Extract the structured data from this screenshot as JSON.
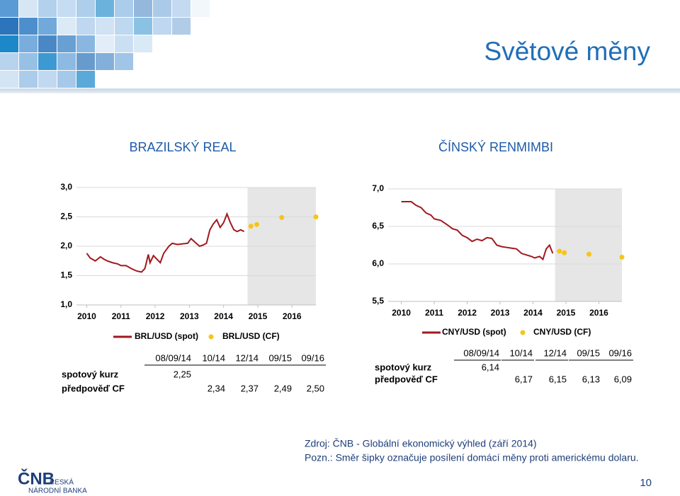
{
  "title": "Světové měny",
  "chart_data": [
    {
      "type": "line",
      "title": "BRAZILSKÝ REAL",
      "xlim": [
        2009.7,
        2016.7
      ],
      "xticks": [
        2010,
        2011,
        2012,
        2013,
        2014,
        2015,
        2016
      ],
      "ylim": [
        1.0,
        3.0
      ],
      "yticks": [
        {
          "value": 1.0,
          "label": "1,0"
        },
        {
          "value": 1.5,
          "label": "1,5"
        },
        {
          "value": 2.0,
          "label": "2,0"
        },
        {
          "value": 2.5,
          "label": "2,5"
        },
        {
          "value": 3.0,
          "label": "3,0"
        }
      ],
      "grid": true,
      "shaded_range": [
        2014.7,
        2016.7
      ],
      "series": [
        {
          "name": "BRL/USD (spot)",
          "color": "#a0191e",
          "style": "line",
          "x": [
            2010.0,
            2010.1,
            2010.25,
            2010.4,
            2010.5,
            2010.6,
            2010.75,
            2010.9,
            2011.0,
            2011.15,
            2011.3,
            2011.45,
            2011.6,
            2011.7,
            2011.8,
            2011.85,
            2011.95,
            2012.05,
            2012.15,
            2012.25,
            2012.4,
            2012.5,
            2012.65,
            2012.8,
            2012.95,
            2013.05,
            2013.2,
            2013.3,
            2013.4,
            2013.5,
            2013.6,
            2013.7,
            2013.8,
            2013.9,
            2014.0,
            2014.1,
            2014.2,
            2014.3,
            2014.4,
            2014.5,
            2014.6
          ],
          "values": [
            1.88,
            1.8,
            1.75,
            1.82,
            1.78,
            1.75,
            1.72,
            1.7,
            1.67,
            1.67,
            1.62,
            1.58,
            1.56,
            1.62,
            1.86,
            1.72,
            1.84,
            1.78,
            1.72,
            1.88,
            2.0,
            2.05,
            2.03,
            2.04,
            2.05,
            2.13,
            2.05,
            2.0,
            2.02,
            2.05,
            2.28,
            2.38,
            2.45,
            2.32,
            2.4,
            2.55,
            2.4,
            2.28,
            2.25,
            2.28,
            2.25
          ]
        },
        {
          "name": "BRL/USD (CF)",
          "color": "#f5c518",
          "style": "points",
          "x": [
            2014.8,
            2014.97,
            2015.7,
            2016.7
          ],
          "values": [
            2.34,
            2.37,
            2.49,
            2.5
          ]
        }
      ]
    },
    {
      "type": "line",
      "title": "ČÍNSKÝ RENMIMBI",
      "xlim": [
        2009.6,
        2016.7
      ],
      "xticks": [
        2010,
        2011,
        2012,
        2013,
        2014,
        2015,
        2016
      ],
      "ylim": [
        5.5,
        7.0
      ],
      "yticks": [
        {
          "value": 5.5,
          "label": "5,5"
        },
        {
          "value": 6.0,
          "label": "6,0"
        },
        {
          "value": 6.5,
          "label": "6,5"
        },
        {
          "value": 7.0,
          "label": "7,0"
        }
      ],
      "grid": true,
      "shaded_range": [
        2014.67,
        2016.7
      ],
      "series": [
        {
          "name": "CNY/USD (spot)",
          "color": "#a0191e",
          "style": "line",
          "x": [
            2010.0,
            2010.3,
            2010.45,
            2010.6,
            2010.75,
            2010.9,
            2011.0,
            2011.2,
            2011.4,
            2011.55,
            2011.7,
            2011.85,
            2012.0,
            2012.15,
            2012.3,
            2012.45,
            2012.6,
            2012.75,
            2012.9,
            2013.05,
            2013.2,
            2013.35,
            2013.5,
            2013.65,
            2013.8,
            2013.95,
            2014.05,
            2014.2,
            2014.3,
            2014.4,
            2014.5,
            2014.6
          ],
          "values": [
            6.83,
            6.83,
            6.78,
            6.75,
            6.68,
            6.65,
            6.6,
            6.58,
            6.52,
            6.47,
            6.45,
            6.38,
            6.35,
            6.3,
            6.33,
            6.31,
            6.35,
            6.34,
            6.25,
            6.23,
            6.22,
            6.21,
            6.2,
            6.14,
            6.12,
            6.1,
            6.08,
            6.1,
            6.06,
            6.2,
            6.25,
            6.14
          ]
        },
        {
          "name": "CNY/USD (CF)",
          "color": "#f5c518",
          "style": "points",
          "x": [
            2014.8,
            2014.95,
            2015.7,
            2016.7
          ],
          "values": [
            6.17,
            6.15,
            6.13,
            6.09
          ]
        }
      ]
    }
  ],
  "tables": [
    {
      "header": [
        "08/09/14",
        "10/14",
        "12/14",
        "09/15",
        "09/16"
      ],
      "spot": {
        "label": "spotový kurz",
        "value": "2,25"
      },
      "forecast": {
        "label": "předpověď CF",
        "values": [
          "2,34",
          "2,37",
          "2,49",
          "2,50"
        ]
      }
    },
    {
      "header": [
        "08/09/14",
        "10/14",
        "12/14",
        "09/15",
        "09/16"
      ],
      "spot": {
        "label": "spotový kurz",
        "value": "6,14"
      },
      "forecast": {
        "label": "předpověď CF",
        "values": [
          "6,17",
          "6,15",
          "6,13",
          "6,09"
        ]
      }
    }
  ],
  "source": "Zdroj: ČNB - Globální ekonomický výhled (září 2014)",
  "note": "Pozn.: Směr šipky označuje posílení domácí měny proti americkému dolaru.",
  "logo": {
    "mark": "ČNB",
    "line1": "ČESKÁ",
    "line2": "NÁRODNÍ BANKA"
  },
  "page_number": "10"
}
